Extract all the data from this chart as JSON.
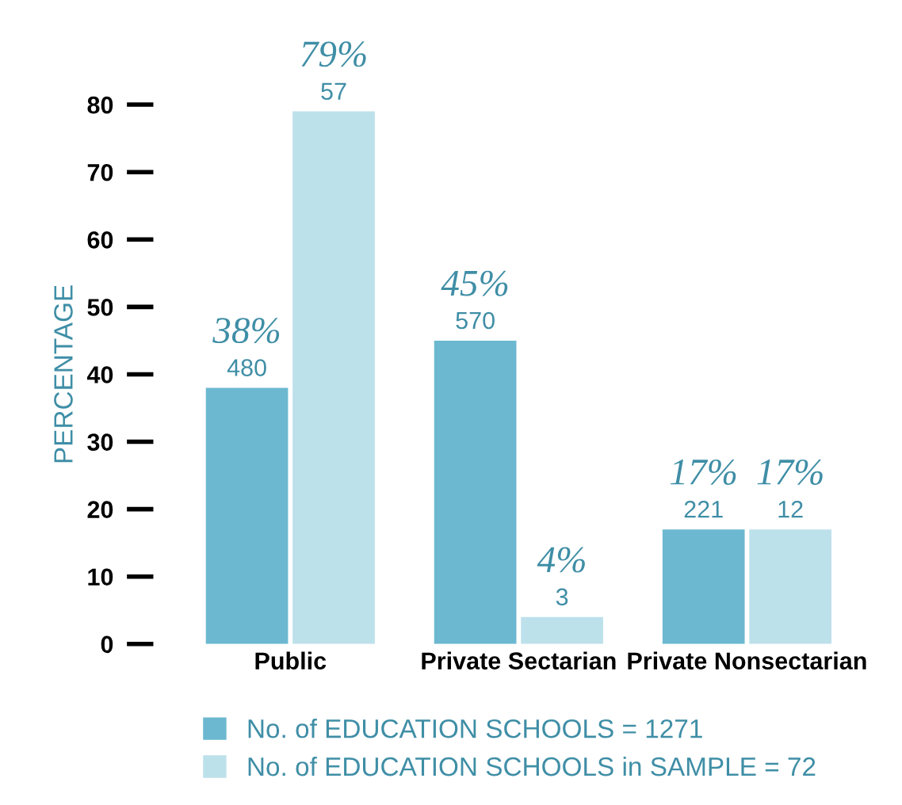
{
  "chart_data": {
    "type": "bar",
    "ylabel": "PERCENTAGE",
    "categories": [
      "Public",
      "Private Sectarian",
      "Private Nonsectarian"
    ],
    "series": [
      {
        "name": "No. of EDUCATION SCHOOLS = 1271",
        "color": "#6cb8d0",
        "values": [
          38,
          45,
          17
        ],
        "value_labels": [
          "38%\n480",
          "45%\n570",
          "17%\n221"
        ]
      },
      {
        "name": "No. of EDUCATION SCHOOLS in SAMPLE = 72",
        "color": "#bde1eb",
        "values": [
          79,
          4,
          17
        ],
        "value_labels": [
          "79%\n57",
          "4%\n3",
          "17%\n12"
        ]
      }
    ],
    "ylim": [
      0,
      80
    ],
    "yticks": [
      0,
      10,
      20,
      30,
      40,
      50,
      60,
      70,
      80
    ],
    "grid": false,
    "legend": "bottom"
  }
}
